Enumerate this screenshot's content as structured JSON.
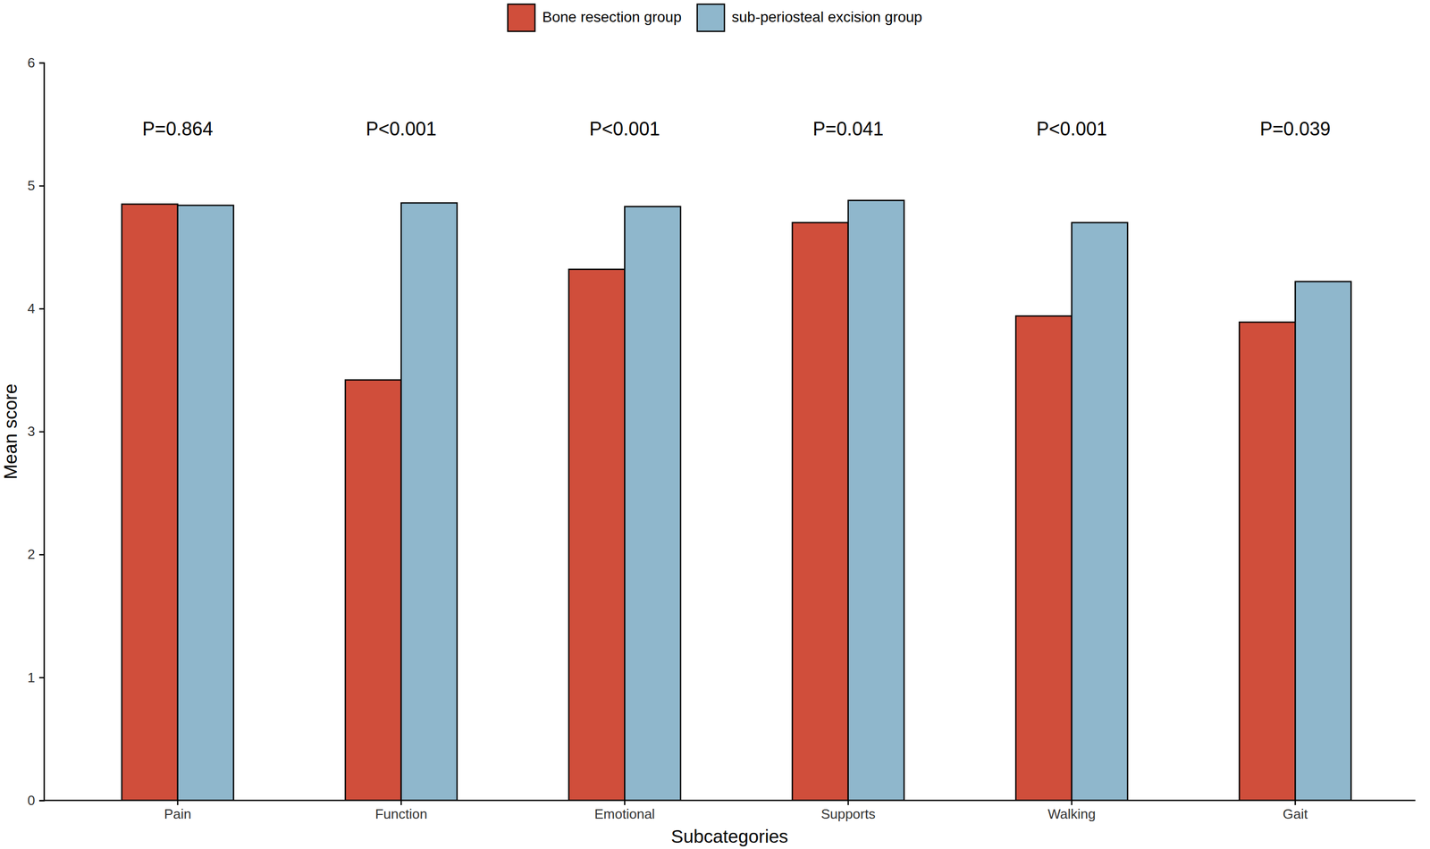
{
  "chart_data": {
    "type": "bar",
    "x_label": "Subcategories",
    "y_label": "Mean score",
    "categories": [
      "Pain",
      "Function",
      "Emotional",
      "Supports",
      "Walking",
      "Gait"
    ],
    "series": [
      {
        "name": "Bone resection group",
        "color": "#d04e3b",
        "values": [
          4.85,
          3.42,
          4.32,
          4.7,
          3.94,
          3.89
        ]
      },
      {
        "name": "sub-periosteal excision group",
        "color": "#8fb7cc",
        "values": [
          4.84,
          4.86,
          4.83,
          4.88,
          4.7,
          4.22
        ]
      }
    ],
    "annotations": [
      {
        "text": "P=0.864",
        "x": "Pain",
        "y": 5.45
      },
      {
        "text": "P<0.001",
        "x": "Function",
        "y": 5.45
      },
      {
        "text": "P<0.001",
        "x": "Emotional",
        "y": 5.45
      },
      {
        "text": "P=0.041",
        "x": "Supports",
        "y": 5.45
      },
      {
        "text": "P<0.001",
        "x": "Walking",
        "y": 5.45
      },
      {
        "text": "P=0.039",
        "x": "Gait",
        "y": 5.45
      }
    ],
    "ylim": [
      0,
      6
    ],
    "yticks": [
      0,
      1,
      2,
      3,
      4,
      5,
      6
    ],
    "grid": false,
    "legend": "top"
  }
}
